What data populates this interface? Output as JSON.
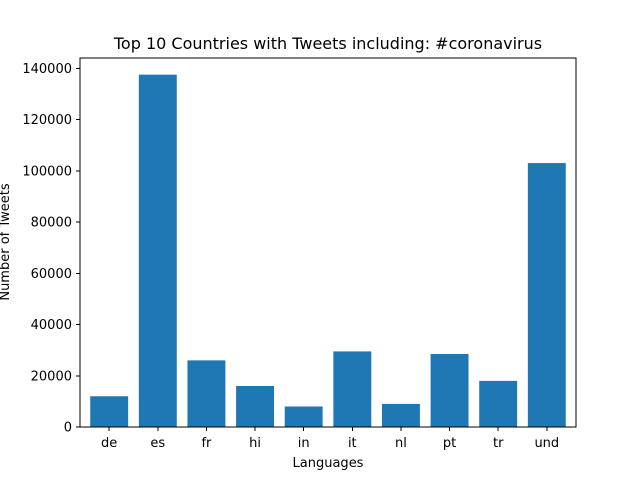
{
  "chart_data": {
    "type": "bar",
    "title": "Top 10 Countries with Tweets including: #coronavirus",
    "xlabel": "Languages",
    "ylabel": "Number of Tweets",
    "categories": [
      "de",
      "es",
      "fr",
      "hi",
      "in",
      "it",
      "nl",
      "pt",
      "tr",
      "und"
    ],
    "values": [
      12000,
      137500,
      26000,
      16000,
      8000,
      29500,
      9000,
      28500,
      18000,
      103000
    ],
    "ylim": [
      0,
      144000
    ],
    "yticks": [
      0,
      20000,
      40000,
      60000,
      80000,
      100000,
      120000,
      140000
    ],
    "grid": false,
    "bar_color": "#1f77b4"
  }
}
